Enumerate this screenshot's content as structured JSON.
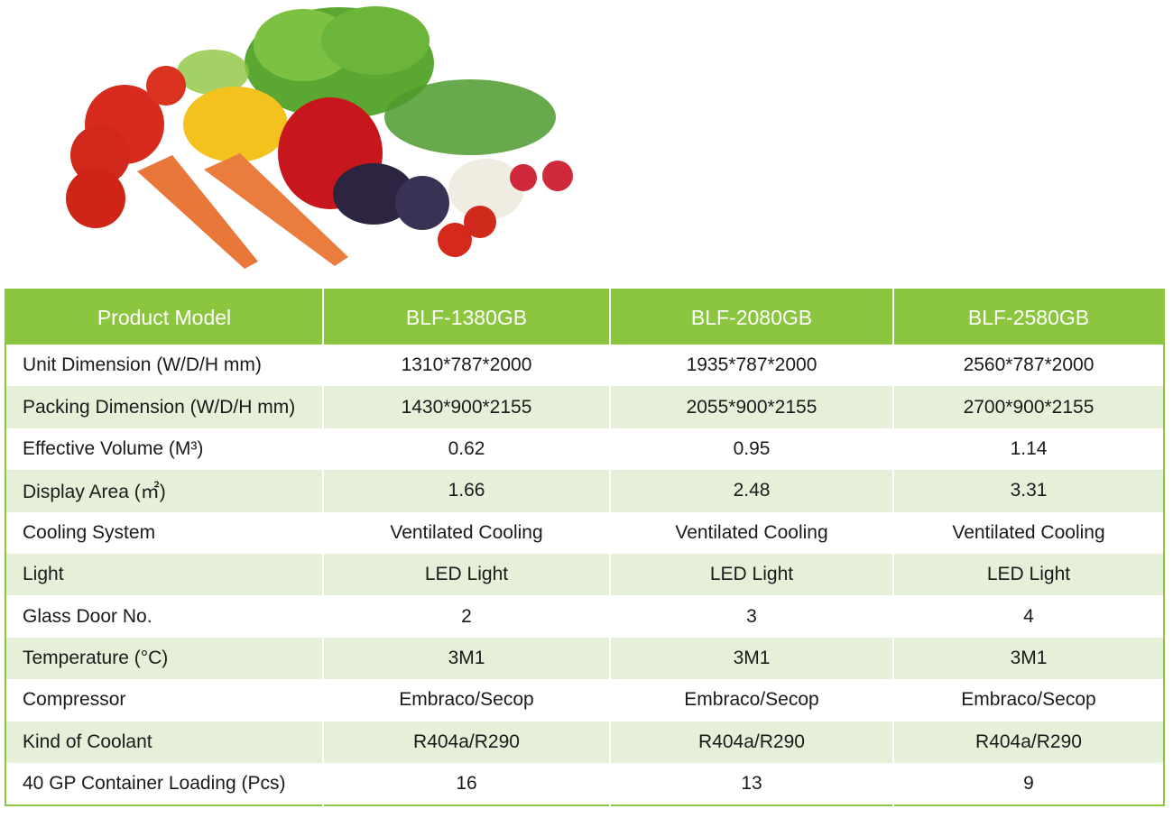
{
  "hero_image": {
    "icon": "vegetables-illustration"
  },
  "table": {
    "headers": [
      "Product Model",
      "BLF-1380GB",
      "BLF-2080GB",
      "BLF-2580GB"
    ],
    "rows": [
      [
        "Unit Dimension (W/D/H mm)",
        "1310*787*2000",
        "1935*787*2000",
        "2560*787*2000"
      ],
      [
        "Packing Dimension (W/D/H mm)",
        "1430*900*2155",
        "2055*900*2155",
        "2700*900*2155"
      ],
      [
        "Effective Volume (M³)",
        "0.62",
        "0.95",
        "1.14"
      ],
      [
        "Display Area (㎡)",
        "1.66",
        "2.48",
        "3.31"
      ],
      [
        "Cooling System",
        "Ventilated Cooling",
        "Ventilated Cooling",
        "Ventilated Cooling"
      ],
      [
        "Light",
        "LED Light",
        "LED Light",
        "LED Light"
      ],
      [
        "Glass Door No.",
        "2",
        "3",
        "4"
      ],
      [
        "Temperature (°C)",
        "3M1",
        "3M1",
        "3M1"
      ],
      [
        "Compressor",
        "Embraco/Secop",
        "Embraco/Secop",
        "Embraco/Secop"
      ],
      [
        "Kind of Coolant",
        "R404a/R290",
        "R404a/R290",
        "R404a/R290"
      ],
      [
        "40 GP Container Loading (Pcs)",
        "16",
        "13",
        "9"
      ]
    ]
  },
  "colors": {
    "accent": "#8cc63f",
    "row_alt": "#e6f0d8",
    "text": "#1a1a1a"
  }
}
